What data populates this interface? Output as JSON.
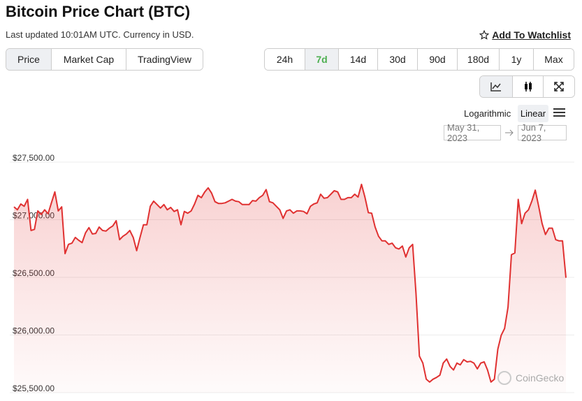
{
  "header": {
    "title": "Bitcoin Price Chart (BTC)",
    "subtitle": "Last updated 10:01AM UTC. Currency in USD.",
    "watchlist": "Add To Watchlist"
  },
  "tabs": {
    "items": [
      "Price",
      "Market Cap",
      "TradingView"
    ],
    "active": 0
  },
  "ranges": {
    "items": [
      "24h",
      "7d",
      "14d",
      "30d",
      "90d",
      "180d",
      "1y",
      "Max"
    ],
    "active": 1
  },
  "scale": {
    "options": [
      "Logarithmic",
      "Linear"
    ],
    "active": 1
  },
  "date_range": {
    "from": "May 31, 2023",
    "to": "Jun 7, 2023"
  },
  "watermark": "CoinGecko",
  "chart_data": {
    "type": "area",
    "ylim": [
      25500,
      27500
    ],
    "yticks": [
      {
        "value": 25500,
        "label": "$25,500.00"
      },
      {
        "value": 26000,
        "label": "$26,000.00"
      },
      {
        "value": 26500,
        "label": "$26,500.00"
      },
      {
        "value": 27000,
        "label": "$27,000.00"
      },
      {
        "value": 27500,
        "label": "$27,500.00"
      }
    ],
    "grid": true,
    "series": [
      {
        "color": "#e03131",
        "values": [
          27075,
          27050,
          27100,
          27080,
          27140,
          26870,
          26880,
          27040,
          27010,
          27050,
          27015,
          27110,
          27205,
          27040,
          27075,
          26670,
          26750,
          26760,
          26810,
          26785,
          26765,
          26850,
          26895,
          26840,
          26845,
          26900,
          26870,
          26865,
          26890,
          26910,
          26955,
          26790,
          26820,
          26840,
          26870,
          26810,
          26695,
          26810,
          26920,
          26920,
          27080,
          27125,
          27095,
          27065,
          27095,
          27050,
          27070,
          27035,
          27050,
          26920,
          27035,
          27020,
          27040,
          27100,
          27175,
          27155,
          27205,
          27240,
          27195,
          27120,
          27105,
          27105,
          27110,
          27125,
          27140,
          27125,
          27120,
          27095,
          27095,
          27095,
          27130,
          27125,
          27155,
          27175,
          27225,
          27120,
          27110,
          27080,
          27050,
          26975,
          27040,
          27050,
          27020,
          27040,
          27040,
          27035,
          27015,
          27080,
          27100,
          27110,
          27185,
          27150,
          27155,
          27185,
          27215,
          27205,
          27140,
          27140,
          27155,
          27155,
          27185,
          27160,
          27270,
          27160,
          27025,
          27020,
          26900,
          26820,
          26780,
          26780,
          26750,
          26760,
          26720,
          26710,
          26735,
          26640,
          26720,
          26750,
          26325,
          25780,
          25720,
          25580,
          25555,
          25580,
          25595,
          25615,
          25720,
          25755,
          25690,
          25660,
          25720,
          25705,
          25750,
          25730,
          25735,
          25720,
          25670,
          25720,
          25730,
          25660,
          25555,
          25580,
          25840,
          25960,
          26020,
          26205,
          26660,
          26675,
          27140,
          26930,
          27020,
          27050,
          27125,
          27220,
          27080,
          26930,
          26835,
          26890,
          26890,
          26790,
          26780,
          26780,
          26460
        ]
      }
    ]
  }
}
